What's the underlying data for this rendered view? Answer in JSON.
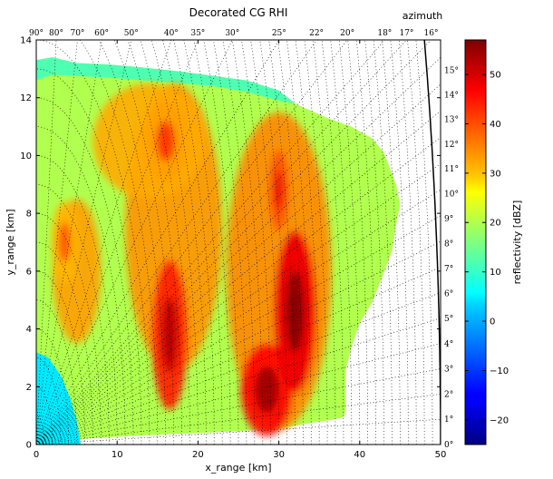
{
  "chart_data": {
    "type": "heatmap",
    "title": "Decorated CG RHI",
    "xlabel": "x_range [km]",
    "ylabel": "y_range [km]",
    "xlim": [
      0,
      50
    ],
    "ylim": [
      0,
      14
    ],
    "x_ticks": [
      0,
      10,
      20,
      30,
      40,
      50
    ],
    "y_ticks": [
      0,
      2,
      4,
      6,
      8,
      10,
      12,
      14
    ],
    "x_tick_labels": [
      "0",
      "10",
      "20",
      "30",
      "40",
      "50"
    ],
    "y_tick_labels": [
      "0",
      "2",
      "4",
      "6",
      "8",
      "10",
      "12",
      "14"
    ],
    "grid": false,
    "colorbar": {
      "label": "reflectivity [dBZ]",
      "range": [
        -25,
        57
      ],
      "ticks": [
        -20,
        -10,
        0,
        10,
        20,
        30,
        40,
        50
      ],
      "tick_labels": [
        "−20",
        "−10",
        "0",
        "10",
        "20",
        "30",
        "40",
        "50"
      ],
      "colormap": "jet"
    },
    "azimuth_label": "azimuth",
    "top_azimuth_ticks": [
      {
        "deg": 90,
        "label": "90°"
      },
      {
        "deg": 80,
        "label": "80°"
      },
      {
        "deg": 70,
        "label": "70°"
      },
      {
        "deg": 60,
        "label": "60°"
      },
      {
        "deg": 50,
        "label": "50°"
      },
      {
        "deg": 40,
        "label": "40°"
      },
      {
        "deg": 35,
        "label": "35°"
      },
      {
        "deg": 30,
        "label": "30°"
      },
      {
        "deg": 25,
        "label": "25°"
      },
      {
        "deg": 22,
        "label": "22°"
      },
      {
        "deg": 20,
        "label": "20°"
      },
      {
        "deg": 18,
        "label": "18°"
      },
      {
        "deg": 17,
        "label": "17°"
      },
      {
        "deg": 16,
        "label": "16°"
      }
    ],
    "right_elevation_ticks": [
      {
        "deg": 0,
        "label": "0°"
      },
      {
        "deg": 1,
        "label": "1°"
      },
      {
        "deg": 2,
        "label": "2°"
      },
      {
        "deg": 3,
        "label": "3°"
      },
      {
        "deg": 4,
        "label": "4°"
      },
      {
        "deg": 5,
        "label": "5°"
      },
      {
        "deg": 6,
        "label": "6°"
      },
      {
        "deg": 7,
        "label": "7°"
      },
      {
        "deg": 8,
        "label": "8°"
      },
      {
        "deg": 9,
        "label": "9°"
      },
      {
        "deg": 10,
        "label": "10°"
      },
      {
        "deg": 11,
        "label": "11°"
      },
      {
        "deg": 12,
        "label": "12°"
      },
      {
        "deg": 13,
        "label": "13°"
      },
      {
        "deg": 14,
        "label": "14°"
      },
      {
        "deg": 15,
        "label": "15°"
      }
    ],
    "max_range_km": 50,
    "range_ring_spacing_km": 1,
    "cells": [
      {
        "x": 16.5,
        "y": 3.8,
        "dbz": 52
      },
      {
        "x": 28.5,
        "y": 1.9,
        "dbz": 54
      },
      {
        "x": 32.0,
        "y": 4.6,
        "dbz": 56
      },
      {
        "x": 30.0,
        "y": 8.8,
        "dbz": 48
      },
      {
        "x": 16.0,
        "y": 10.5,
        "dbz": 42
      },
      {
        "x": 3.5,
        "y": 7.0,
        "dbz": 40
      }
    ]
  }
}
